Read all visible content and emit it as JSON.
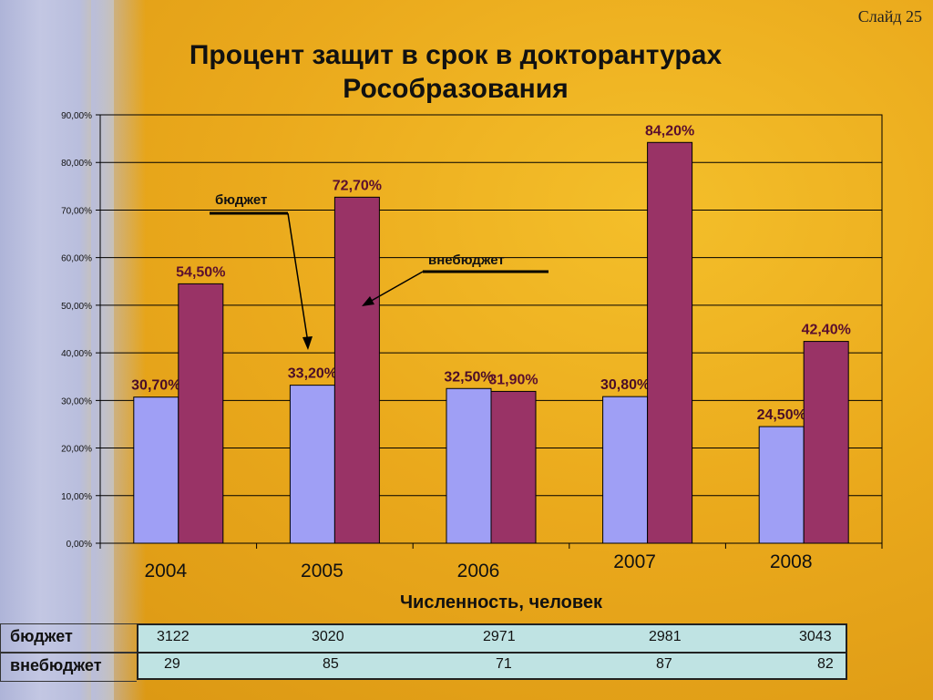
{
  "slide": {
    "number_label": "Слайд 25"
  },
  "title": {
    "line1": "Процент защит в срок в докторантурах",
    "line2": "Рособразования"
  },
  "chart_data": {
    "type": "bar",
    "categories": [
      "2004",
      "2005",
      "2006",
      "2007",
      "2008"
    ],
    "series": [
      {
        "name": "бюджет",
        "values": [
          30.7,
          33.2,
          32.5,
          30.8,
          24.5
        ],
        "labels": [
          "30,70%",
          "33,20%",
          "32,50%",
          "30,80%",
          "24,50%"
        ],
        "color": "#9f9ff5"
      },
      {
        "name": "внебюджет",
        "values": [
          54.5,
          72.7,
          31.9,
          84.2,
          42.4
        ],
        "labels": [
          "54,50%",
          "72,70%",
          "31,90%",
          "84,20%",
          "42,40%"
        ],
        "color": "#993366"
      }
    ],
    "yticks": [
      "0,00%",
      "10,00%",
      "20,00%",
      "30,00%",
      "40,00%",
      "50,00%",
      "60,00%",
      "70,00%",
      "80,00%",
      "90,00%"
    ],
    "ylim": [
      0,
      90
    ],
    "grid": true,
    "annotations": [
      "бюджет",
      "внебюджет"
    ]
  },
  "table": {
    "title": "Численность, человек",
    "rows": [
      {
        "label": "бюджет",
        "values": [
          "3122",
          "3020",
          "2971",
          "2981",
          "3043"
        ]
      },
      {
        "label": "внебюджет",
        "values": [
          "29",
          "85",
          "71",
          "87",
          "82"
        ]
      }
    ]
  },
  "colors": {
    "plot_border": "#000000",
    "annotation_line": "#000000"
  }
}
